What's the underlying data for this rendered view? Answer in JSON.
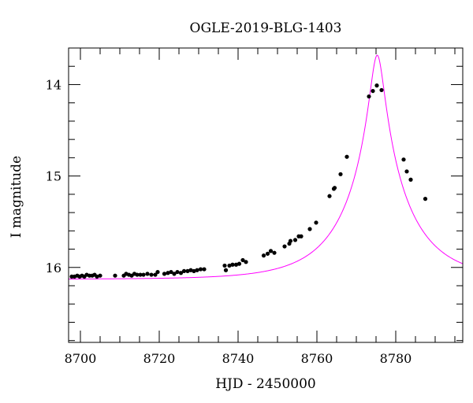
{
  "chart_data": {
    "type": "scatter",
    "title": "OGLE-2019-BLG-1403",
    "xlabel": "HJD - 2450000",
    "ylabel": "I magnitude",
    "xlim": [
      8697,
      8797
    ],
    "ylim": [
      16.82,
      13.6
    ],
    "y_inverted": true,
    "grid": false,
    "x_ticks": [
      8700,
      8720,
      8740,
      8760,
      8780
    ],
    "y_ticks": [
      14,
      15,
      16
    ],
    "x_minor_step": 5,
    "y_minor_step": 0.2,
    "point_color": "#000000",
    "model_color": "#ff00ff",
    "model": {
      "t0": 8775.3,
      "tE": 16,
      "u0": 0.105,
      "base_mag": 16.13
    },
    "points": [
      {
        "x": 8697.8,
        "y": 16.1
      },
      {
        "x": 8698.5,
        "y": 16.1
      },
      {
        "x": 8699.2,
        "y": 16.09
      },
      {
        "x": 8699.8,
        "y": 16.1
      },
      {
        "x": 8700.4,
        "y": 16.09
      },
      {
        "x": 8701.0,
        "y": 16.1
      },
      {
        "x": 8701.6,
        "y": 16.08
      },
      {
        "x": 8702.3,
        "y": 16.09
      },
      {
        "x": 8703.0,
        "y": 16.09
      },
      {
        "x": 8703.6,
        "y": 16.08
      },
      {
        "x": 8704.2,
        "y": 16.1
      },
      {
        "x": 8705.0,
        "y": 16.09
      },
      {
        "x": 8708.8,
        "y": 16.09
      },
      {
        "x": 8711.0,
        "y": 16.09
      },
      {
        "x": 8711.6,
        "y": 16.07
      },
      {
        "x": 8712.3,
        "y": 16.08
      },
      {
        "x": 8713.0,
        "y": 16.09
      },
      {
        "x": 8713.7,
        "y": 16.07
      },
      {
        "x": 8714.4,
        "y": 16.08
      },
      {
        "x": 8715.2,
        "y": 16.08
      },
      {
        "x": 8716.0,
        "y": 16.08
      },
      {
        "x": 8717.0,
        "y": 16.07
      },
      {
        "x": 8718.0,
        "y": 16.08
      },
      {
        "x": 8719.0,
        "y": 16.08
      },
      {
        "x": 8719.6,
        "y": 16.05
      },
      {
        "x": 8721.3,
        "y": 16.07
      },
      {
        "x": 8722.2,
        "y": 16.06
      },
      {
        "x": 8723.0,
        "y": 16.05
      },
      {
        "x": 8723.8,
        "y": 16.07
      },
      {
        "x": 8724.6,
        "y": 16.05
      },
      {
        "x": 8725.5,
        "y": 16.06
      },
      {
        "x": 8726.3,
        "y": 16.04
      },
      {
        "x": 8727.2,
        "y": 16.04
      },
      {
        "x": 8728.0,
        "y": 16.03
      },
      {
        "x": 8728.8,
        "y": 16.04
      },
      {
        "x": 8729.6,
        "y": 16.03
      },
      {
        "x": 8730.5,
        "y": 16.02
      },
      {
        "x": 8731.4,
        "y": 16.02
      },
      {
        "x": 8736.6,
        "y": 15.98
      },
      {
        "x": 8736.9,
        "y": 16.03
      },
      {
        "x": 8737.8,
        "y": 15.98
      },
      {
        "x": 8738.6,
        "y": 15.97
      },
      {
        "x": 8739.5,
        "y": 15.97
      },
      {
        "x": 8740.3,
        "y": 15.96
      },
      {
        "x": 8741.2,
        "y": 15.92
      },
      {
        "x": 8742.0,
        "y": 15.94
      },
      {
        "x": 8746.5,
        "y": 15.87
      },
      {
        "x": 8747.5,
        "y": 15.85
      },
      {
        "x": 8748.3,
        "y": 15.82
      },
      {
        "x": 8749.2,
        "y": 15.84
      },
      {
        "x": 8751.8,
        "y": 15.77
      },
      {
        "x": 8753.0,
        "y": 15.74
      },
      {
        "x": 8753.3,
        "y": 15.71
      },
      {
        "x": 8754.5,
        "y": 15.7
      },
      {
        "x": 8755.4,
        "y": 15.66
      },
      {
        "x": 8756.0,
        "y": 15.66
      },
      {
        "x": 8758.2,
        "y": 15.58
      },
      {
        "x": 8759.8,
        "y": 15.51
      },
      {
        "x": 8763.2,
        "y": 15.22
      },
      {
        "x": 8764.3,
        "y": 15.14
      },
      {
        "x": 8764.5,
        "y": 15.13
      },
      {
        "x": 8766.0,
        "y": 14.98
      },
      {
        "x": 8767.6,
        "y": 14.79
      },
      {
        "x": 8773.2,
        "y": 14.13
      },
      {
        "x": 8774.2,
        "y": 14.07
      },
      {
        "x": 8775.2,
        "y": 14.01
      },
      {
        "x": 8776.4,
        "y": 14.06
      },
      {
        "x": 8782.0,
        "y": 14.82
      },
      {
        "x": 8782.8,
        "y": 14.95
      },
      {
        "x": 8783.8,
        "y": 15.04
      },
      {
        "x": 8787.5,
        "y": 15.25
      }
    ]
  }
}
